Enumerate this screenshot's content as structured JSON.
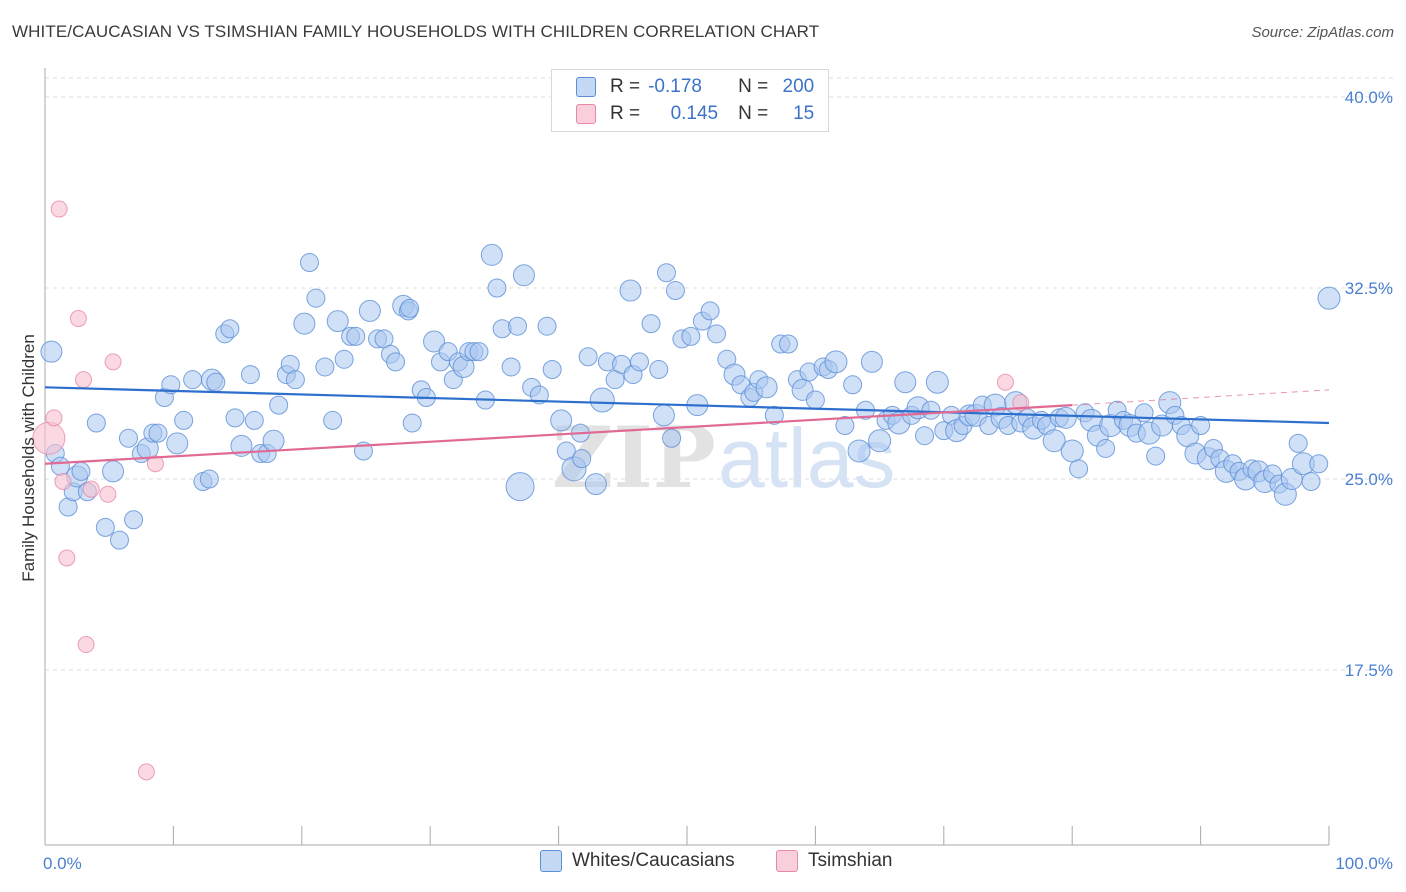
{
  "title": "WHITE/CAUCASIAN VS TSIMSHIAN FAMILY HOUSEHOLDS WITH CHILDREN CORRELATION CHART",
  "source": "Source: ZipAtlas.com",
  "watermark": {
    "zip": "ZIP",
    "atlas": "atlas"
  },
  "legend": {
    "rows": [
      {
        "r_label": "R =",
        "r_value": "-0.178",
        "n_label": "N =",
        "n_value": "200",
        "color": "#a9c6f0"
      },
      {
        "r_label": "R =",
        "r_value": "0.145",
        "n_label": "N =",
        "n_value": "15",
        "color": "#f7b6c8"
      }
    ]
  },
  "bottom_legend": [
    "Whites/Caucasians",
    "Tsimshian"
  ],
  "colors": {
    "blue_fill": "#a9c6f0",
    "blue_stroke": "#5b8fd6",
    "blue_line": "#2d6fcc",
    "pink_fill": "#f7c0d0",
    "pink_stroke": "#e889a6",
    "pink_line": "#e06a94",
    "grid": "#dddddd",
    "axis_text": "#4a7fcf"
  },
  "chart_data": {
    "type": "scatter",
    "title": "WHITE/CAUCASIAN VS TSIMSHIAN FAMILY HOUSEHOLDS WITH CHILDREN CORRELATION CHART",
    "xlabel": "",
    "ylabel": "Family Households with Children",
    "xlim": [
      0,
      100
    ],
    "ylim": [
      11.0,
      41.0
    ],
    "x_tick_labels": [
      "0.0%",
      "100.0%"
    ],
    "y_ticks": [
      17.5,
      25.0,
      32.5,
      40.0
    ],
    "y_tick_labels": [
      "17.5%",
      "25.0%",
      "32.5%",
      "40.0%"
    ],
    "grid": true,
    "legend_position": "top-center",
    "series": [
      {
        "name": "Whites/Caucasians",
        "r": -0.178,
        "n": 200,
        "trend": {
          "x": [
            0,
            100
          ],
          "y": [
            28.6,
            27.2
          ]
        },
        "points": [
          [
            0.5,
            30.0
          ],
          [
            0.8,
            26.0
          ],
          [
            1.2,
            25.5
          ],
          [
            1.8,
            23.9
          ],
          [
            2.2,
            24.5
          ],
          [
            2.5,
            25.1
          ],
          [
            2.8,
            25.3
          ],
          [
            3.3,
            24.5
          ],
          [
            4.0,
            27.2
          ],
          [
            4.7,
            23.1
          ],
          [
            5.3,
            25.3
          ],
          [
            5.8,
            22.6
          ],
          [
            6.5,
            26.6
          ],
          [
            6.9,
            23.4
          ],
          [
            7.5,
            26.0
          ],
          [
            8.0,
            26.2
          ],
          [
            8.4,
            26.8
          ],
          [
            8.8,
            26.8
          ],
          [
            9.3,
            28.2
          ],
          [
            9.8,
            28.7
          ],
          [
            10.3,
            26.4
          ],
          [
            10.8,
            27.3
          ],
          [
            11.5,
            28.9
          ],
          [
            12.3,
            24.9
          ],
          [
            12.8,
            25.0
          ],
          [
            13.0,
            28.9
          ],
          [
            13.3,
            28.8
          ],
          [
            14.0,
            30.7
          ],
          [
            14.4,
            30.9
          ],
          [
            14.8,
            27.4
          ],
          [
            15.3,
            26.3
          ],
          [
            16.0,
            29.1
          ],
          [
            16.3,
            27.3
          ],
          [
            16.8,
            26.0
          ],
          [
            17.3,
            26.0
          ],
          [
            17.8,
            26.5
          ],
          [
            18.2,
            27.9
          ],
          [
            18.8,
            29.1
          ],
          [
            19.1,
            29.5
          ],
          [
            19.5,
            28.9
          ],
          [
            20.2,
            31.1
          ],
          [
            20.6,
            33.5
          ],
          [
            21.1,
            32.1
          ],
          [
            21.8,
            29.4
          ],
          [
            22.4,
            27.3
          ],
          [
            22.8,
            31.2
          ],
          [
            23.3,
            29.7
          ],
          [
            23.8,
            30.6
          ],
          [
            24.2,
            30.6
          ],
          [
            24.8,
            26.1
          ],
          [
            25.3,
            31.6
          ],
          [
            25.9,
            30.5
          ],
          [
            26.4,
            30.5
          ],
          [
            26.9,
            29.9
          ],
          [
            27.3,
            29.6
          ],
          [
            27.9,
            31.8
          ],
          [
            28.3,
            31.6
          ],
          [
            28.6,
            27.2
          ],
          [
            29.3,
            28.5
          ],
          [
            29.7,
            28.2
          ],
          [
            30.3,
            30.4
          ],
          [
            30.8,
            29.6
          ],
          [
            31.4,
            30.0
          ],
          [
            31.8,
            28.9
          ],
          [
            32.2,
            29.6
          ],
          [
            32.6,
            29.4
          ],
          [
            33.0,
            30.0
          ],
          [
            33.4,
            30.0
          ],
          [
            33.8,
            30.0
          ],
          [
            34.3,
            28.1
          ],
          [
            34.8,
            33.8
          ],
          [
            35.2,
            32.5
          ],
          [
            35.6,
            30.9
          ],
          [
            36.3,
            29.4
          ],
          [
            36.8,
            31.0
          ],
          [
            37.3,
            33.0
          ],
          [
            37.9,
            28.6
          ],
          [
            38.5,
            28.3
          ],
          [
            39.1,
            31.0
          ],
          [
            39.5,
            29.3
          ],
          [
            40.2,
            27.3
          ],
          [
            40.6,
            26.1
          ],
          [
            41.2,
            25.4
          ],
          [
            41.8,
            25.8
          ],
          [
            42.3,
            29.8
          ],
          [
            42.9,
            24.8
          ],
          [
            43.4,
            28.1
          ],
          [
            43.8,
            29.6
          ],
          [
            44.4,
            28.9
          ],
          [
            44.9,
            29.5
          ],
          [
            45.6,
            32.4
          ],
          [
            45.8,
            29.1
          ],
          [
            46.3,
            29.6
          ],
          [
            47.2,
            31.1
          ],
          [
            47.8,
            29.3
          ],
          [
            48.2,
            27.5
          ],
          [
            48.8,
            26.6
          ],
          [
            49.1,
            32.4
          ],
          [
            49.6,
            30.5
          ],
          [
            50.3,
            30.6
          ],
          [
            50.8,
            27.9
          ],
          [
            51.2,
            31.2
          ],
          [
            51.8,
            31.6
          ],
          [
            52.3,
            30.7
          ],
          [
            53.1,
            29.7
          ],
          [
            53.7,
            29.1
          ],
          [
            54.2,
            28.7
          ],
          [
            54.9,
            28.2
          ],
          [
            55.2,
            28.4
          ],
          [
            55.6,
            28.9
          ],
          [
            56.2,
            28.6
          ],
          [
            56.8,
            27.5
          ],
          [
            57.3,
            30.3
          ],
          [
            57.9,
            30.3
          ],
          [
            58.6,
            28.9
          ],
          [
            59.0,
            28.5
          ],
          [
            59.5,
            29.2
          ],
          [
            60.0,
            28.1
          ],
          [
            60.6,
            29.4
          ],
          [
            61.0,
            29.3
          ],
          [
            61.6,
            29.6
          ],
          [
            62.3,
            27.1
          ],
          [
            62.9,
            28.7
          ],
          [
            63.4,
            26.1
          ],
          [
            63.9,
            27.7
          ],
          [
            64.4,
            29.6
          ],
          [
            65.0,
            26.5
          ],
          [
            65.5,
            27.3
          ],
          [
            66.0,
            27.5
          ],
          [
            66.5,
            27.2
          ],
          [
            67.0,
            28.8
          ],
          [
            67.5,
            27.5
          ],
          [
            68.0,
            27.8
          ],
          [
            68.5,
            26.7
          ],
          [
            69.0,
            27.7
          ],
          [
            69.5,
            28.8
          ],
          [
            70.0,
            26.9
          ],
          [
            70.6,
            27.5
          ],
          [
            71.0,
            26.9
          ],
          [
            71.5,
            27.1
          ],
          [
            72.0,
            27.5
          ],
          [
            72.5,
            27.5
          ],
          [
            73.0,
            27.9
          ],
          [
            73.5,
            27.1
          ],
          [
            74.0,
            27.9
          ],
          [
            74.5,
            27.4
          ],
          [
            75.0,
            27.1
          ],
          [
            75.6,
            28.0
          ],
          [
            76.0,
            27.2
          ],
          [
            76.5,
            27.4
          ],
          [
            77.0,
            27.0
          ],
          [
            77.6,
            27.3
          ],
          [
            78.0,
            27.1
          ],
          [
            78.6,
            26.5
          ],
          [
            79.0,
            27.4
          ],
          [
            79.5,
            27.4
          ],
          [
            80.0,
            26.1
          ],
          [
            80.5,
            25.4
          ],
          [
            81.0,
            27.6
          ],
          [
            81.5,
            27.3
          ],
          [
            82.0,
            26.7
          ],
          [
            82.6,
            26.2
          ],
          [
            83.0,
            27.1
          ],
          [
            83.5,
            27.7
          ],
          [
            84.0,
            27.3
          ],
          [
            84.5,
            27.1
          ],
          [
            85.0,
            26.8
          ],
          [
            85.6,
            27.6
          ],
          [
            86.0,
            26.8
          ],
          [
            86.5,
            25.9
          ],
          [
            87.0,
            27.1
          ],
          [
            87.6,
            28.0
          ],
          [
            88.0,
            27.5
          ],
          [
            88.5,
            27.1
          ],
          [
            89.0,
            26.7
          ],
          [
            89.6,
            26.0
          ],
          [
            90.0,
            27.1
          ],
          [
            90.6,
            25.8
          ],
          [
            91.0,
            26.2
          ],
          [
            91.5,
            25.8
          ],
          [
            92.0,
            25.3
          ],
          [
            92.5,
            25.6
          ],
          [
            93.0,
            25.3
          ],
          [
            93.5,
            25.0
          ],
          [
            94.0,
            25.4
          ],
          [
            94.5,
            25.3
          ],
          [
            95.0,
            24.9
          ],
          [
            95.6,
            25.2
          ],
          [
            96.1,
            24.8
          ],
          [
            96.6,
            24.4
          ],
          [
            97.1,
            25.0
          ],
          [
            97.6,
            26.4
          ],
          [
            98.0,
            25.6
          ],
          [
            98.6,
            24.9
          ],
          [
            99.2,
            25.6
          ],
          [
            100.0,
            32.1
          ],
          [
            37.0,
            24.7
          ],
          [
            28.4,
            31.7
          ],
          [
            41.7,
            26.8
          ],
          [
            48.4,
            33.1
          ]
        ]
      },
      {
        "name": "Tsimshian",
        "r": 0.145,
        "n": 15,
        "trend": {
          "x": [
            0,
            80
          ],
          "y": [
            25.6,
            27.9
          ]
        },
        "trend_extension": {
          "x": [
            80,
            100
          ],
          "y": [
            27.9,
            28.5
          ]
        },
        "points": [
          [
            0.3,
            26.6
          ],
          [
            0.7,
            27.4
          ],
          [
            1.1,
            35.6
          ],
          [
            1.4,
            24.9
          ],
          [
            1.7,
            21.9
          ],
          [
            2.6,
            31.3
          ],
          [
            3.0,
            28.9
          ],
          [
            3.2,
            18.5
          ],
          [
            3.6,
            24.6
          ],
          [
            4.9,
            24.4
          ],
          [
            5.3,
            29.6
          ],
          [
            7.9,
            13.5
          ],
          [
            8.6,
            25.6
          ],
          [
            74.8,
            28.8
          ],
          [
            76.0,
            28.0
          ]
        ]
      }
    ]
  }
}
